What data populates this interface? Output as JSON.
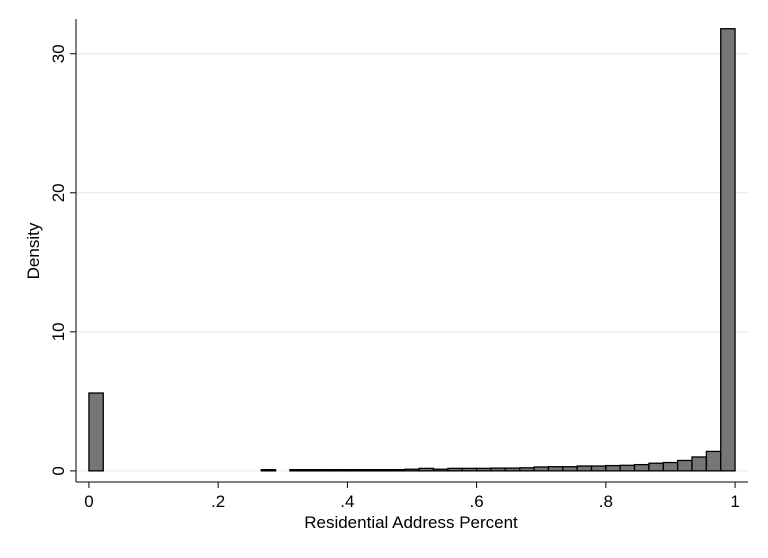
{
  "chart_data": {
    "type": "bar",
    "title": "",
    "xlabel": "Residential Address Percent",
    "ylabel": "Density",
    "xlim": [
      -0.02,
      1.02
    ],
    "ylim": [
      -0.8,
      32.5
    ],
    "x_ticks": [
      {
        "value": 0,
        "label": "0"
      },
      {
        "value": 0.2,
        "label": ".2"
      },
      {
        "value": 0.4,
        "label": ".4"
      },
      {
        "value": 0.6,
        "label": ".6"
      },
      {
        "value": 0.8,
        "label": ".8"
      },
      {
        "value": 1,
        "label": "1"
      }
    ],
    "y_ticks": [
      {
        "value": 0,
        "label": "0"
      },
      {
        "value": 10,
        "label": "10"
      },
      {
        "value": 20,
        "label": "20"
      },
      {
        "value": 30,
        "label": "30"
      }
    ],
    "grid": "horizontal",
    "bin_width": 0.0222,
    "bins": [
      {
        "x": 0.0,
        "density": 5.6
      },
      {
        "x": 0.2667,
        "density": 0.05
      },
      {
        "x": 0.3111,
        "density": 0.02
      },
      {
        "x": 0.3333,
        "density": 0.02
      },
      {
        "x": 0.3556,
        "density": 0.02
      },
      {
        "x": 0.3778,
        "density": 0.02
      },
      {
        "x": 0.4,
        "density": 0.03
      },
      {
        "x": 0.4222,
        "density": 0.03
      },
      {
        "x": 0.4444,
        "density": 0.05
      },
      {
        "x": 0.4667,
        "density": 0.05
      },
      {
        "x": 0.4889,
        "density": 0.12
      },
      {
        "x": 0.5111,
        "density": 0.18
      },
      {
        "x": 0.5333,
        "density": 0.12
      },
      {
        "x": 0.5556,
        "density": 0.18
      },
      {
        "x": 0.5778,
        "density": 0.18
      },
      {
        "x": 0.6,
        "density": 0.18
      },
      {
        "x": 0.6222,
        "density": 0.2
      },
      {
        "x": 0.6444,
        "density": 0.2
      },
      {
        "x": 0.6667,
        "density": 0.22
      },
      {
        "x": 0.6889,
        "density": 0.28
      },
      {
        "x": 0.7111,
        "density": 0.3
      },
      {
        "x": 0.7333,
        "density": 0.3
      },
      {
        "x": 0.7556,
        "density": 0.35
      },
      {
        "x": 0.7778,
        "density": 0.35
      },
      {
        "x": 0.8,
        "density": 0.38
      },
      {
        "x": 0.8222,
        "density": 0.4
      },
      {
        "x": 0.8444,
        "density": 0.45
      },
      {
        "x": 0.8667,
        "density": 0.55
      },
      {
        "x": 0.8889,
        "density": 0.6
      },
      {
        "x": 0.9111,
        "density": 0.75
      },
      {
        "x": 0.9333,
        "density": 1.0
      },
      {
        "x": 0.9556,
        "density": 1.4
      },
      {
        "x": 0.9778,
        "density": 31.8
      }
    ],
    "bar_color": "#767676",
    "bar_outline": "#000000",
    "grid_color": "#e6e6e6"
  }
}
